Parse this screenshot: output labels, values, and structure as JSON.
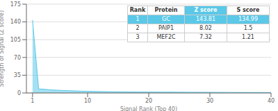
{
  "chart_data": {
    "type": "area",
    "title": "",
    "xlabel": "Signal Rank (Top 40)",
    "ylabel": "Strength of Signal (Z score)",
    "x": [
      1,
      2,
      3,
      4,
      5,
      6,
      7,
      8,
      9,
      10,
      11,
      12,
      13,
      14,
      15,
      16,
      17,
      18,
      19,
      20,
      21,
      22,
      23,
      24,
      25,
      26,
      27,
      28,
      29,
      30,
      31,
      32,
      33,
      34,
      35,
      36,
      37,
      38,
      39,
      40
    ],
    "values": [
      143.81,
      8.02,
      7.32,
      6.1,
      5.5,
      4.9,
      4.4,
      4.0,
      3.6,
      3.3,
      3.0,
      2.8,
      2.6,
      2.4,
      2.3,
      2.1,
      2.0,
      1.9,
      1.85,
      1.8,
      1.75,
      1.7,
      1.65,
      1.6,
      1.55,
      1.5,
      1.45,
      1.4,
      1.35,
      1.3,
      1.25,
      1.2,
      1.15,
      1.1,
      1.05,
      1.02,
      1.0,
      0.98,
      0.95,
      0.92
    ],
    "color": "#5bc8e8",
    "xlim": [
      0,
      40
    ],
    "xticks": [
      1,
      10,
      20,
      30,
      40
    ],
    "ylim": [
      0,
      175
    ],
    "yticks": [
      0,
      35,
      70,
      105,
      140,
      175
    ],
    "grid": "y",
    "table": {
      "headers": [
        "Rank",
        "Protein",
        "Z score",
        "S score"
      ],
      "rows": [
        [
          "1",
          "GC",
          "143.81",
          "134.99"
        ],
        [
          "2",
          "PAIP1",
          "8.02",
          "1.5"
        ],
        [
          "3",
          "MEF2C",
          "7.32",
          "1.21"
        ]
      ],
      "color": "#5bc8e8"
    }
  }
}
